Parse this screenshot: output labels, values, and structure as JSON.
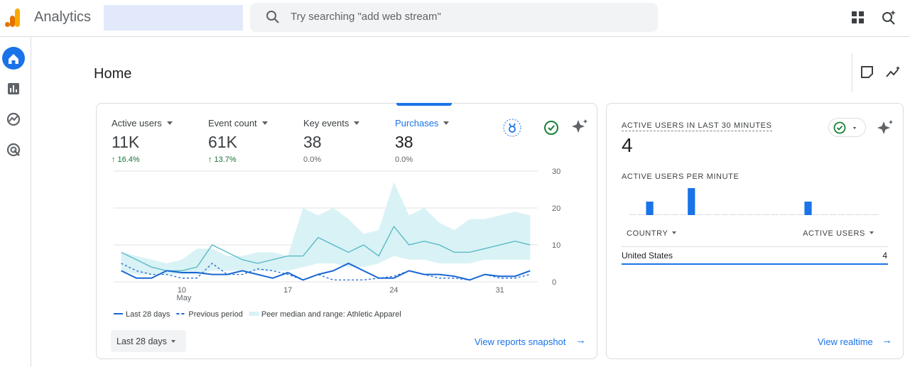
{
  "header": {
    "app_name": "Analytics",
    "search_placeholder": "Try searching \"add web stream\""
  },
  "page_title": "Home",
  "overview": {
    "metrics": [
      {
        "label": "Active users",
        "value": "11K",
        "change": "16.4%"
      },
      {
        "label": "Event count",
        "value": "61K",
        "change": "13.7%"
      },
      {
        "label": "Key events",
        "value": "38",
        "change": "0.0%"
      },
      {
        "label": "Purchases",
        "value": "38",
        "change": "0.0%"
      }
    ],
    "date_range": "Last 28 days",
    "link": "View reports snapshot"
  },
  "realtime": {
    "title": "ACTIVE USERS IN LAST 30 MINUTES",
    "value": "4",
    "per_minute_title": "ACTIVE USERS PER MINUTE",
    "table": {
      "headers": [
        "COUNTRY",
        "ACTIVE USERS"
      ],
      "rows": [
        [
          "United States",
          "4"
        ]
      ]
    },
    "link": "View realtime"
  },
  "chart_data": [
    {
      "type": "line",
      "categories": [
        null,
        null,
        null,
        null,
        "10",
        null,
        null,
        null,
        null,
        null,
        null,
        "17",
        null,
        null,
        null,
        null,
        null,
        null,
        "24",
        null,
        null,
        null,
        null,
        null,
        null,
        "31",
        null,
        null
      ],
      "x_annotation": "May",
      "ylim": [
        0,
        30
      ],
      "yticks": [
        0,
        10,
        20,
        30
      ],
      "grid": true,
      "series": [
        {
          "name": "Last 28 days",
          "color": "#1967d2",
          "dash": false,
          "values": [
            3,
            1,
            1,
            3,
            2.5,
            2.5,
            2,
            2,
            3,
            2,
            1,
            2.5,
            0.5,
            2,
            3,
            5,
            3,
            1,
            1,
            3,
            2,
            2,
            1.5,
            0.5,
            2,
            1.5,
            1.5,
            3
          ]
        },
        {
          "name": "Previous period",
          "color": "#1967d2",
          "dash": true,
          "values": [
            5,
            3,
            2,
            2,
            1,
            1,
            5,
            2,
            2,
            3.5,
            3,
            2,
            0.5,
            2,
            0.5,
            0.5,
            0.5,
            1,
            1.5,
            3,
            2,
            1,
            1,
            0.5,
            2,
            1,
            1,
            2
          ]
        },
        {
          "name": "Peer median and range: Athletic Apparel",
          "color": "#4fb6c4",
          "fill": "#d9f2f5",
          "dash": false,
          "values": [
            8,
            6,
            4,
            3,
            3,
            4,
            10,
            8,
            6,
            5,
            6,
            7,
            7,
            12,
            10,
            8,
            10,
            7,
            15,
            10,
            11,
            10,
            8,
            8,
            9,
            10,
            11,
            10
          ],
          "upper": [
            8,
            7,
            6,
            5,
            6,
            9,
            9,
            7,
            7,
            8,
            8,
            7,
            20,
            18,
            20,
            17,
            13,
            14,
            27,
            18,
            20,
            16,
            14,
            17,
            17,
            18,
            19,
            18
          ],
          "lower": [
            3,
            2,
            2,
            2,
            2,
            2,
            3,
            3,
            3,
            3,
            3,
            3,
            4,
            5,
            5,
            4,
            4,
            5,
            7,
            6,
            6,
            5,
            5,
            5,
            6,
            6,
            6,
            6
          ]
        }
      ]
    },
    {
      "type": "bar",
      "color": "#1a73e8",
      "values": [
        0,
        0,
        1,
        0,
        0,
        0,
        0,
        2,
        0,
        0,
        0,
        0,
        0,
        0,
        0,
        0,
        0,
        0,
        0,
        0,
        0,
        1,
        0,
        0,
        0,
        0,
        0,
        0,
        0,
        0
      ]
    }
  ]
}
